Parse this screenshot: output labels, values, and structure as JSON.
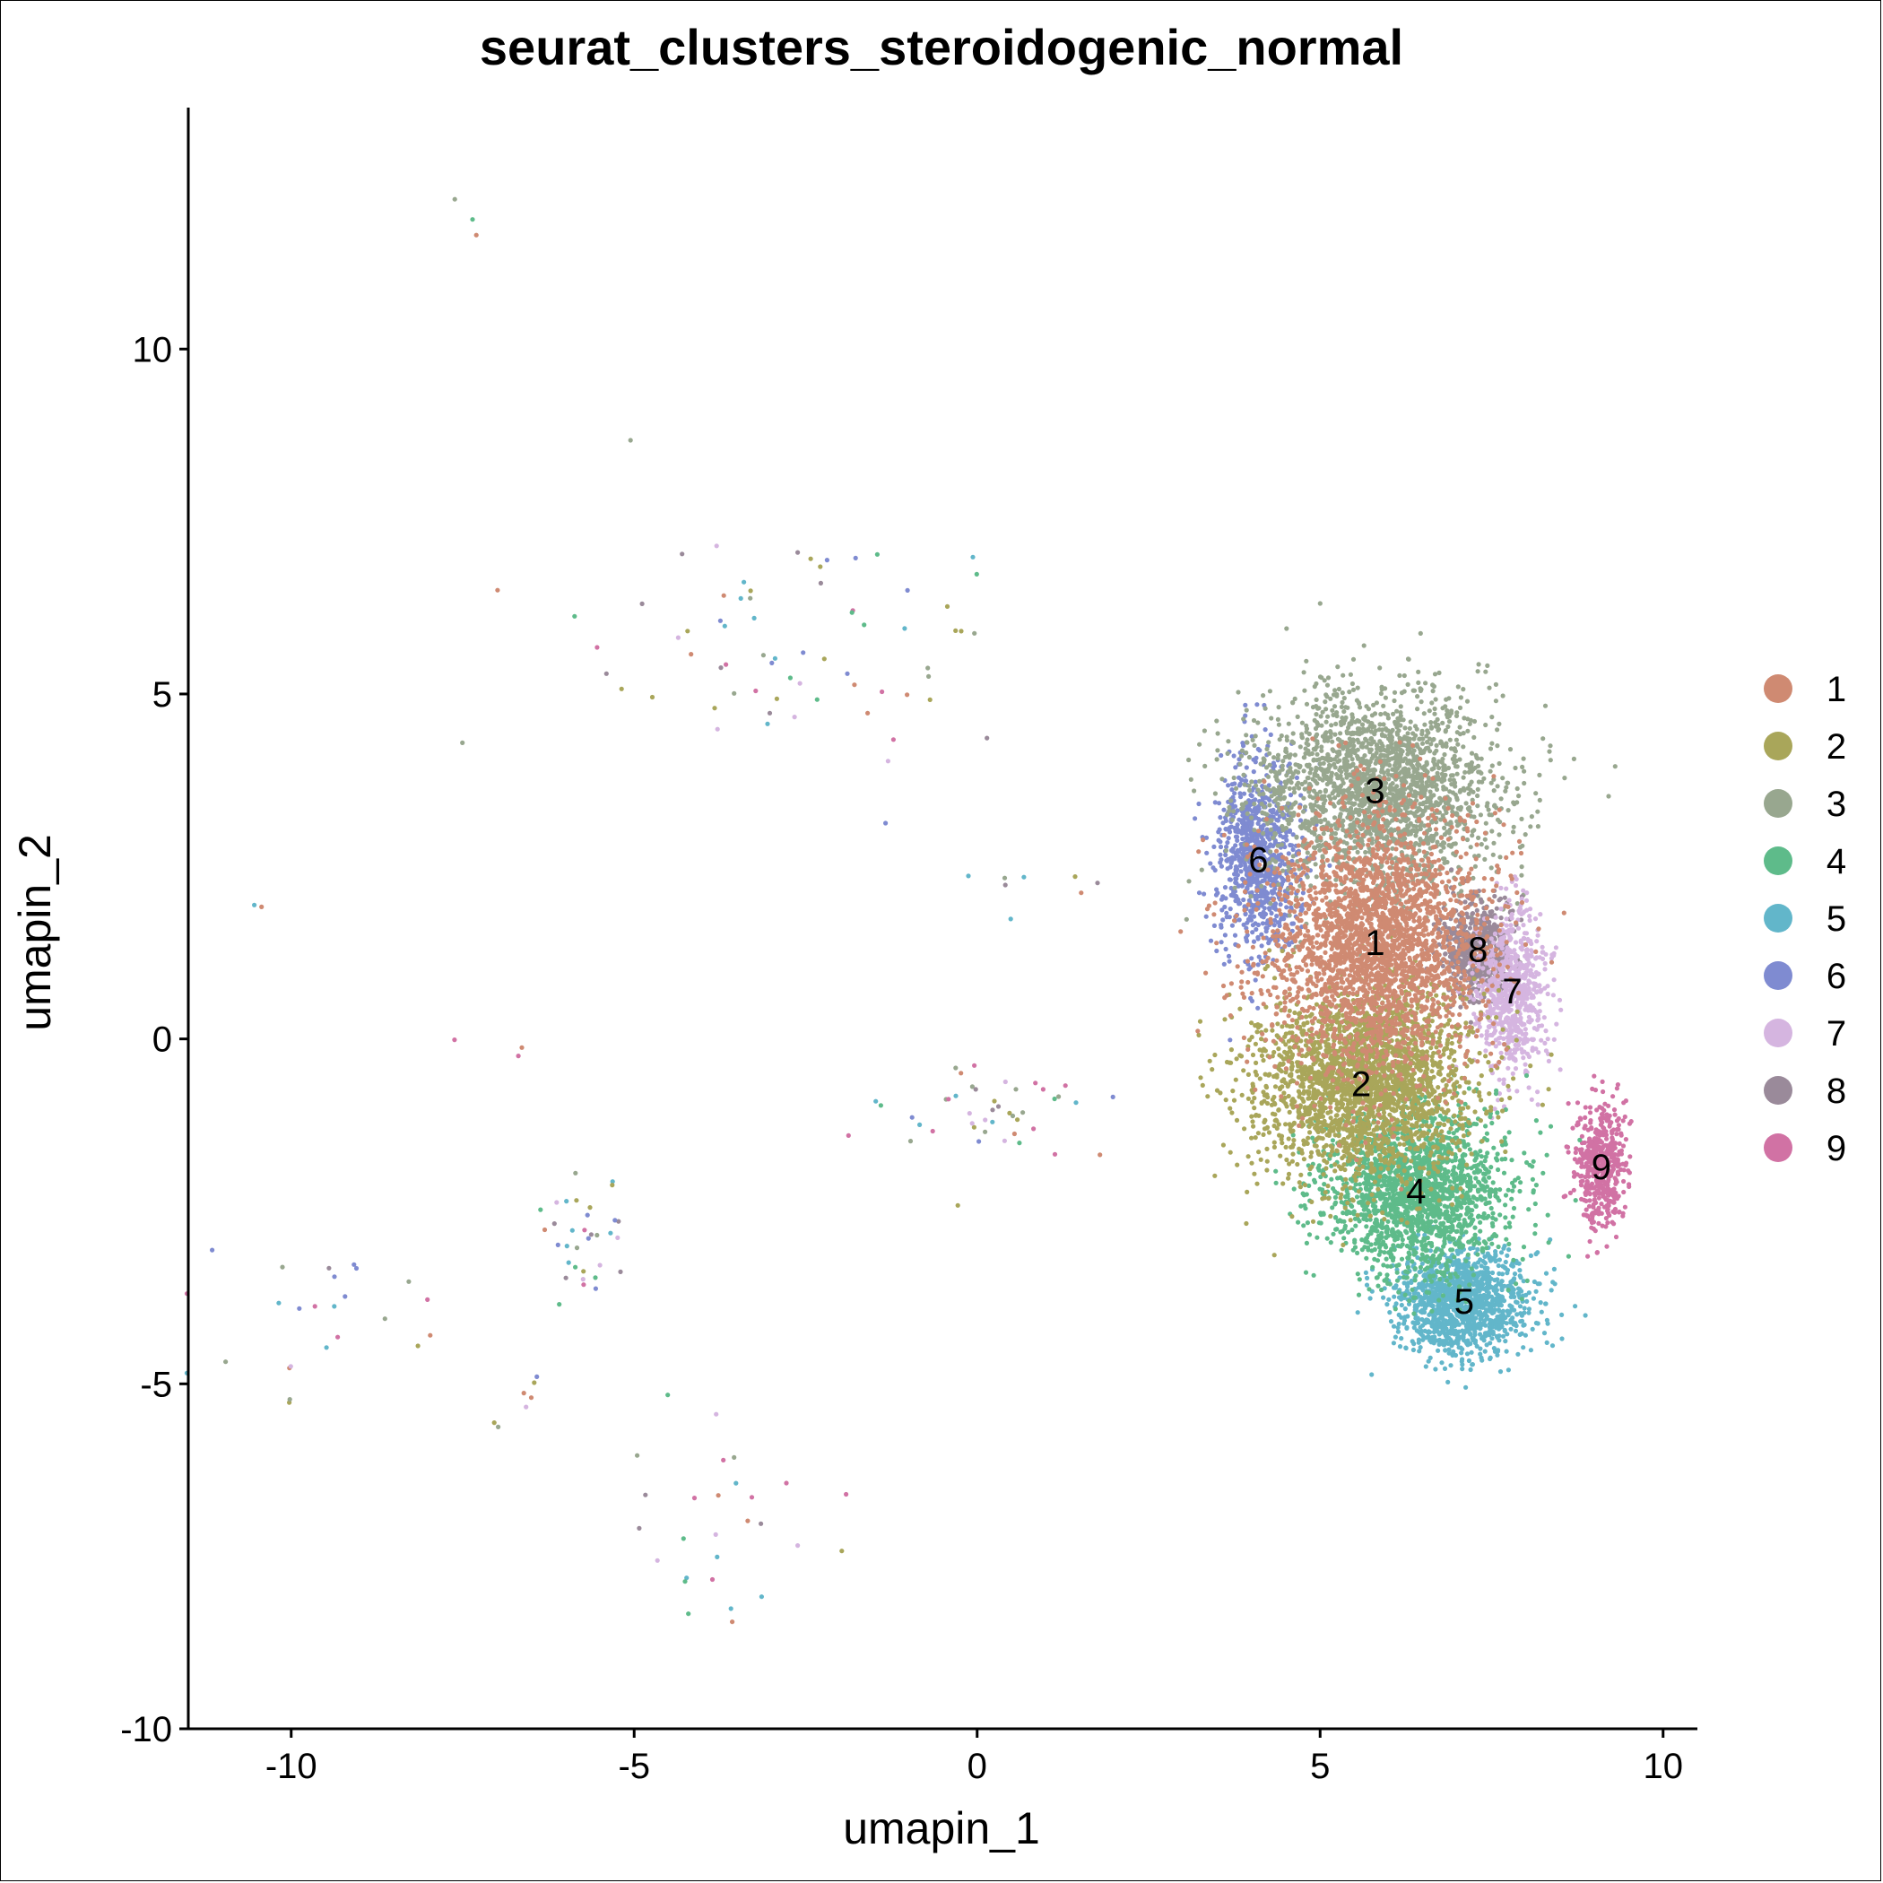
{
  "chart_data": {
    "type": "scatter",
    "title": "seurat_clusters_steroidogenic_normal",
    "xlabel": "umapin_1",
    "ylabel": "umapin_2",
    "xlim": [
      -11.5,
      10.5
    ],
    "ylim": [
      -10.0,
      13.5
    ],
    "xticks": [
      -10,
      -5,
      0,
      5,
      10
    ],
    "yticks": [
      -10,
      -5,
      0,
      5,
      10
    ],
    "xtick_labels": [
      "-10",
      "-5",
      "0",
      "5",
      "10"
    ],
    "ytick_labels": [
      "-10",
      "-5",
      "0",
      "5",
      "10"
    ],
    "legend_position": "right",
    "clusters": [
      {
        "name": "1",
        "color": "#CF8A72",
        "label_x": 5.8,
        "label_y": 1.4,
        "sx": 0.95,
        "sy": 1.1,
        "n": 2600
      },
      {
        "name": "2",
        "color": "#A9A65A",
        "label_x": 5.6,
        "label_y": -0.65,
        "sx": 0.95,
        "sy": 0.8,
        "n": 2400
      },
      {
        "name": "3",
        "color": "#98A78F",
        "label_x": 5.8,
        "label_y": 3.6,
        "sx": 1.05,
        "sy": 0.85,
        "n": 2200
      },
      {
        "name": "4",
        "color": "#5EBB8A",
        "label_x": 6.4,
        "label_y": -2.2,
        "sx": 0.8,
        "sy": 0.7,
        "n": 1800
      },
      {
        "name": "5",
        "color": "#62B6CA",
        "label_x": 7.1,
        "label_y": -3.8,
        "sx": 0.55,
        "sy": 0.45,
        "n": 1300
      },
      {
        "name": "6",
        "color": "#7F8BD1",
        "label_x": 4.1,
        "label_y": 2.6,
        "sx": 0.35,
        "sy": 0.85,
        "n": 900
      },
      {
        "name": "7",
        "color": "#D5B5E0",
        "label_x": 7.8,
        "label_y": 0.7,
        "sx": 0.3,
        "sy": 0.7,
        "n": 700
      },
      {
        "name": "8",
        "color": "#9A8A9A",
        "label_x": 7.3,
        "label_y": 1.3,
        "sx": 0.3,
        "sy": 0.4,
        "n": 600
      },
      {
        "name": "9",
        "color": "#D172A4",
        "label_x": 9.1,
        "label_y": -1.85,
        "sx": 0.22,
        "sy": 0.55,
        "n": 500
      }
    ],
    "outlier_groups": [
      {
        "x": -2.3,
        "y": 5.7,
        "sx": 1.7,
        "sy": 1.0,
        "n": 70
      },
      {
        "x": 0.0,
        "y": -1.0,
        "sx": 0.8,
        "sy": 0.35,
        "n": 45
      },
      {
        "x": -5.8,
        "y": -2.8,
        "sx": 0.4,
        "sy": 0.5,
        "n": 35
      },
      {
        "x": -9.3,
        "y": -4.3,
        "sx": 0.9,
        "sy": 0.6,
        "n": 25
      },
      {
        "x": -3.6,
        "y": -7.4,
        "sx": 0.7,
        "sy": 0.8,
        "n": 28
      },
      {
        "x": 0.8,
        "y": 2.3,
        "sx": 0.4,
        "sy": 0.2,
        "n": 8
      },
      {
        "x": -7.5,
        "y": 11.8,
        "sx": 0.4,
        "sy": 0.6,
        "n": 3
      },
      {
        "x": -6.5,
        "y": -5.3,
        "sx": 0.3,
        "sy": 0.2,
        "n": 6
      },
      {
        "x": -10.5,
        "y": 2.0,
        "sx": 0.05,
        "sy": 0.05,
        "n": 2
      },
      {
        "x": -7.0,
        "y": 0.0,
        "sx": 0.3,
        "sy": 0.1,
        "n": 3
      }
    ]
  }
}
